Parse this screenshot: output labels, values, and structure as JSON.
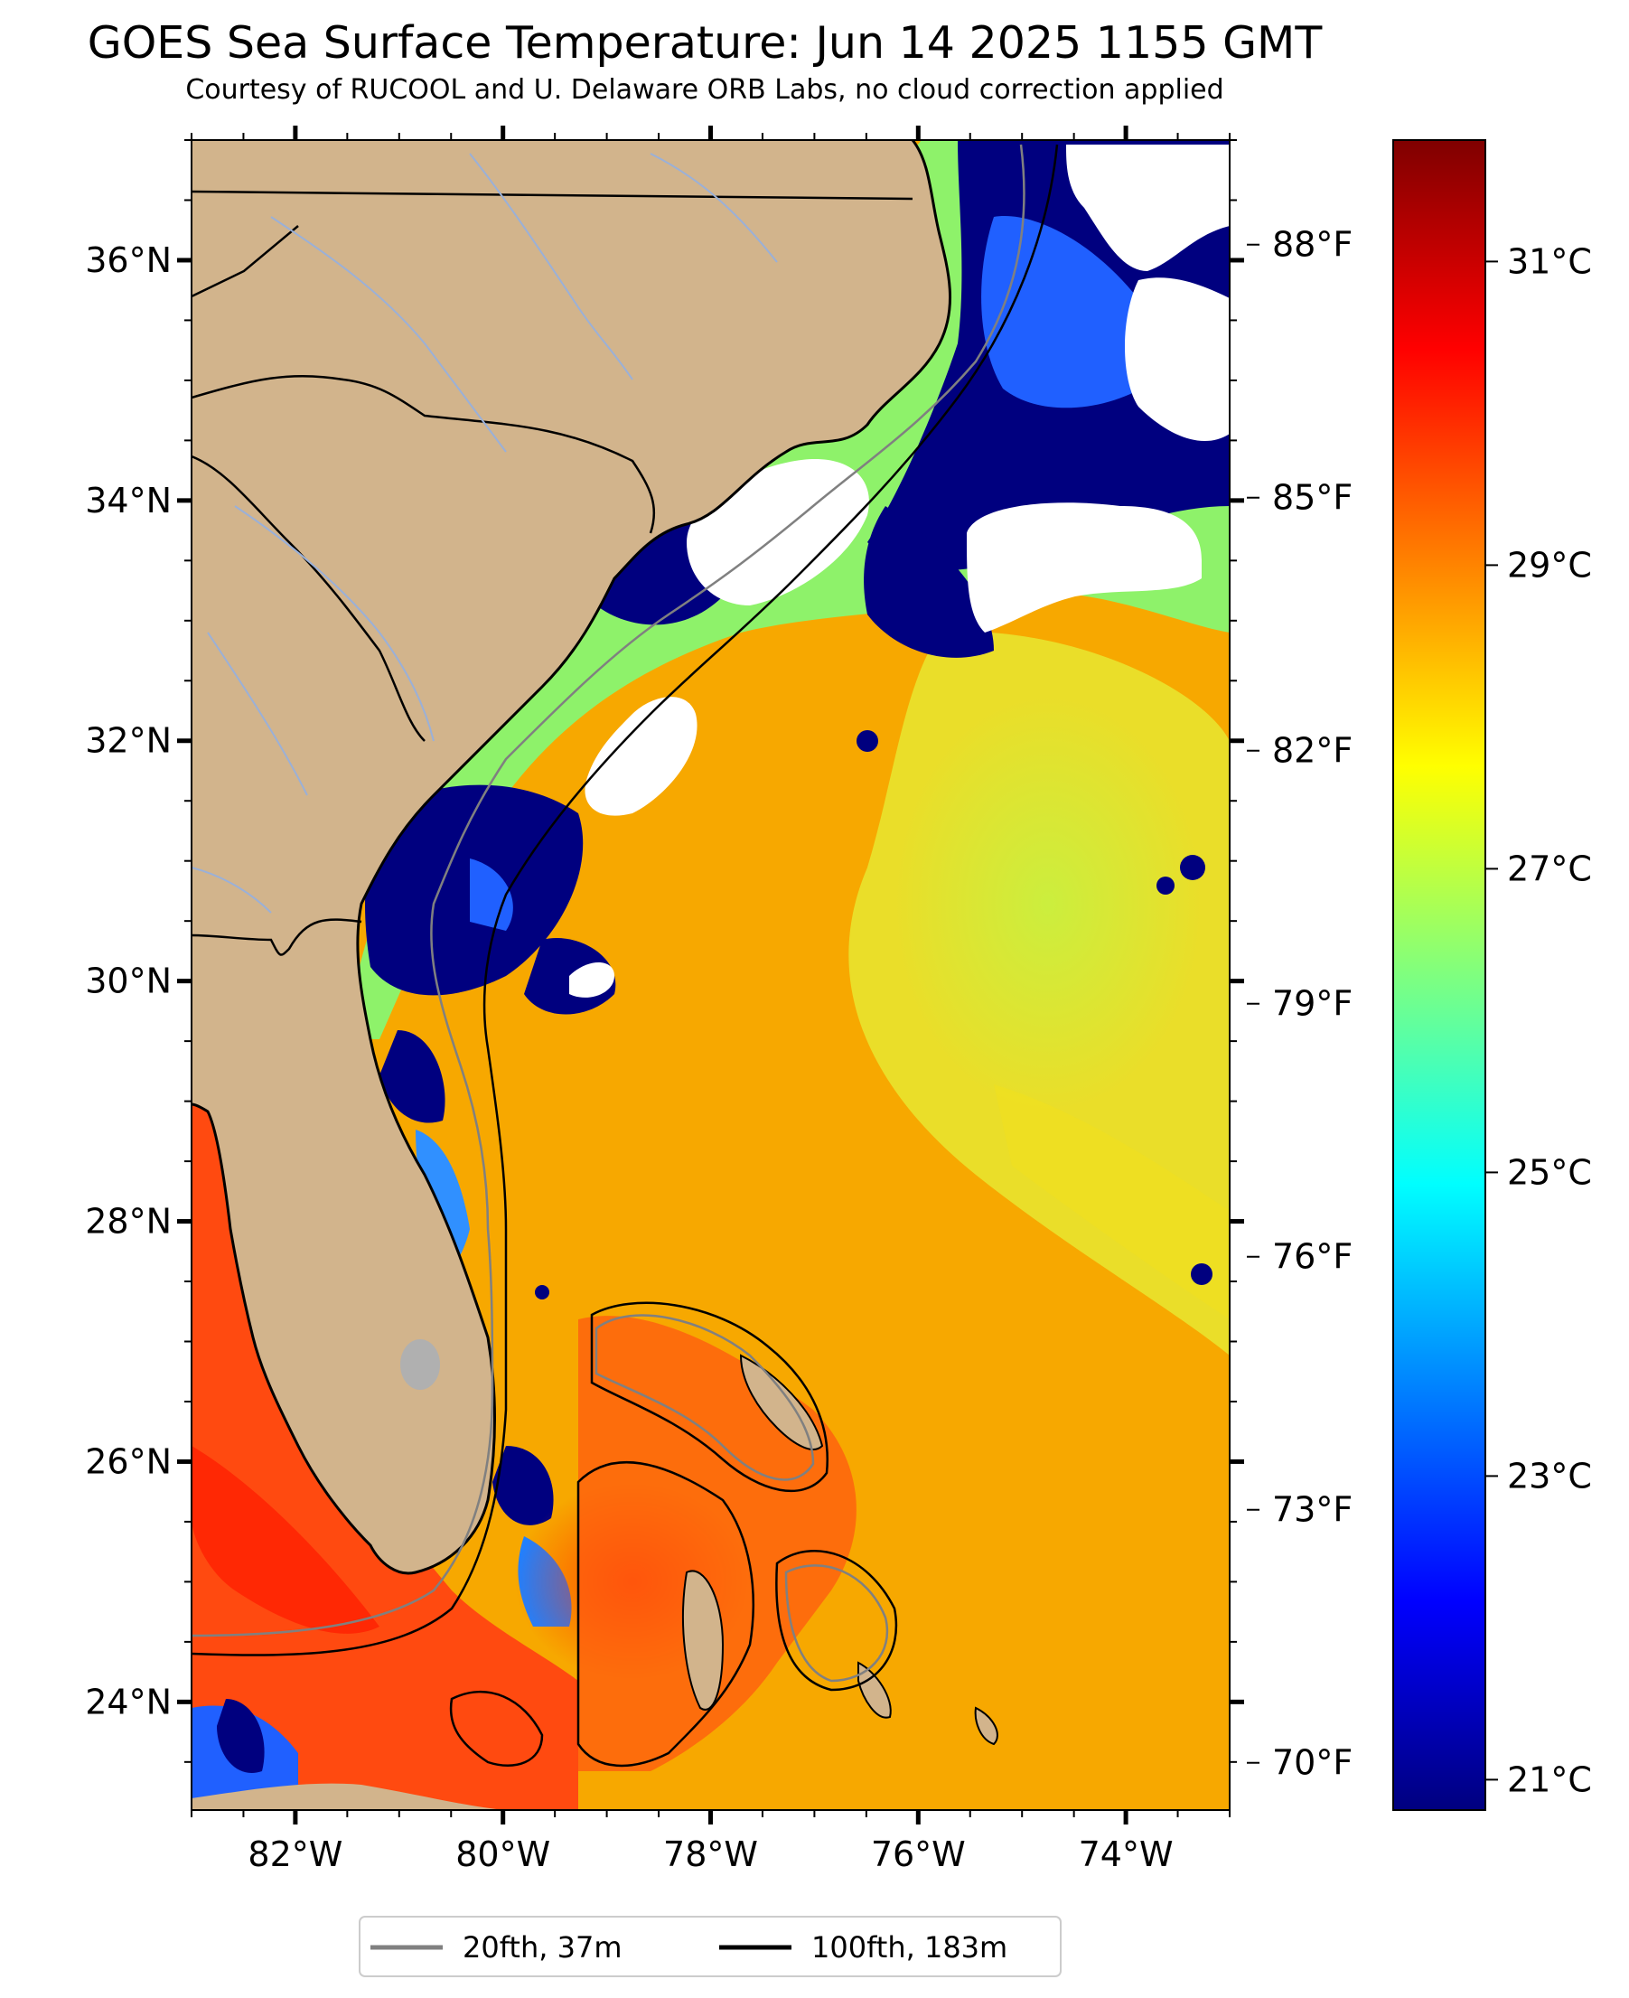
{
  "title": "GOES Sea Surface Temperature: Jun 14 2025 1155 GMT",
  "subtitle": "Courtesy of RUCOOL and U. Delaware ORB Labs, no cloud correction applied",
  "colors": {
    "land": "#d2b48c",
    "cloud": "#ffffff",
    "contour_20fth": "#808080",
    "contour_100fth": "#000000",
    "rivers": "#9ab0d8",
    "colormap": [
      "#00007f",
      "#0000ff",
      "#007fff",
      "#00ffff",
      "#7fff7f",
      "#ffff00",
      "#ff7f00",
      "#ff0000",
      "#7f0000"
    ]
  },
  "map": {
    "lon_range": [
      -83.0,
      -73.0
    ],
    "lat_range": [
      23.1,
      37.0
    ],
    "lon_ticks": [
      {
        "value": -82,
        "label": "82°W"
      },
      {
        "value": -80,
        "label": "80°W"
      },
      {
        "value": -78,
        "label": "78°W"
      },
      {
        "value": -76,
        "label": "76°W"
      },
      {
        "value": -74,
        "label": "74°W"
      }
    ],
    "lat_ticks": [
      {
        "value": 24,
        "label": "24°N"
      },
      {
        "value": 26,
        "label": "26°N"
      },
      {
        "value": 28,
        "label": "28°N"
      },
      {
        "value": 30,
        "label": "30°N"
      },
      {
        "value": 32,
        "label": "32°N"
      },
      {
        "value": 34,
        "label": "34°N"
      },
      {
        "value": 36,
        "label": "36°N"
      }
    ]
  },
  "colorbar": {
    "celsius_range": [
      20.8,
      31.8
    ],
    "celsius_ticks": [
      {
        "value": 21,
        "label": "21°C"
      },
      {
        "value": 23,
        "label": "23°C"
      },
      {
        "value": 25,
        "label": "25°C"
      },
      {
        "value": 27,
        "label": "27°C"
      },
      {
        "value": 29,
        "label": "29°C"
      },
      {
        "value": 31,
        "label": "31°C"
      }
    ],
    "fahrenheit_ticks": [
      {
        "value": 70,
        "label": "70°F"
      },
      {
        "value": 73,
        "label": "73°F"
      },
      {
        "value": 76,
        "label": "76°F"
      },
      {
        "value": 79,
        "label": "79°F"
      },
      {
        "value": 82,
        "label": "82°F"
      },
      {
        "value": 85,
        "label": "85°F"
      },
      {
        "value": 88,
        "label": "88°F"
      }
    ]
  },
  "legend": {
    "items": [
      {
        "label": "20fth, 37m",
        "color": "#808080"
      },
      {
        "label": "100fth, 183m",
        "color": "#000000"
      }
    ],
    "placement": "bottom-center"
  }
}
